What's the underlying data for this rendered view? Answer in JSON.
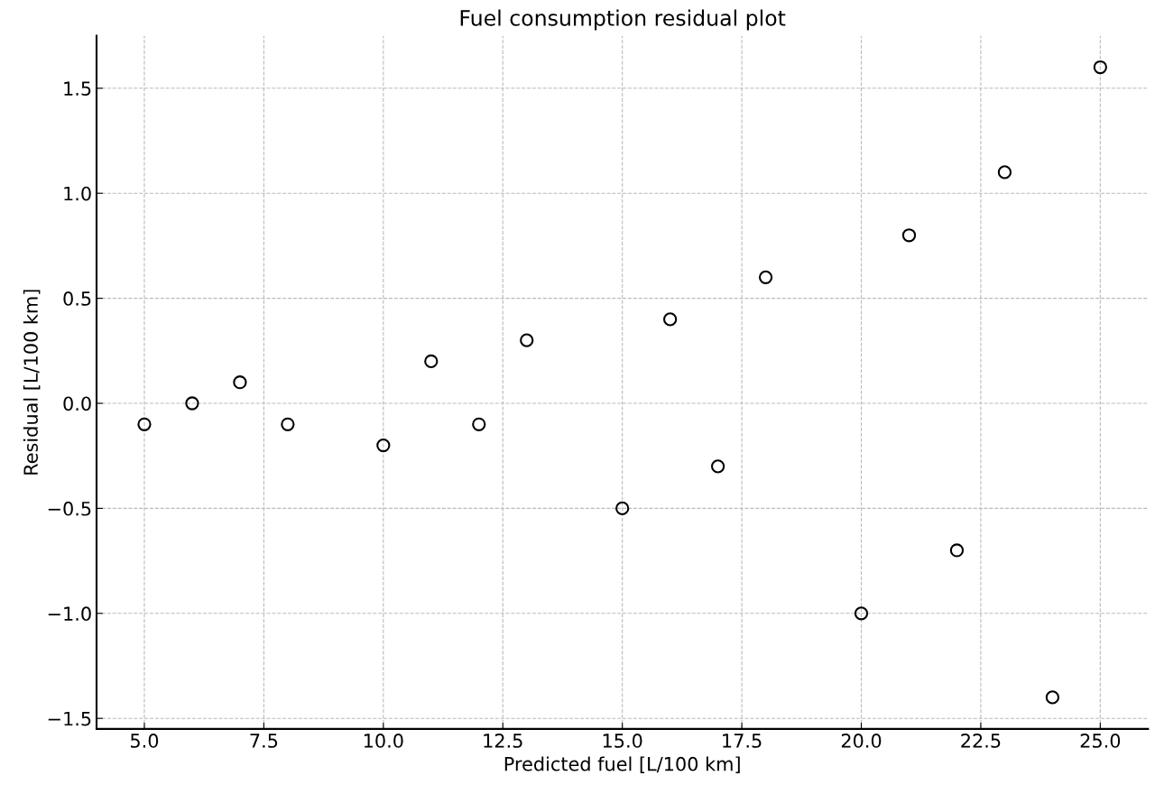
{
  "chart_data": {
    "type": "scatter",
    "title": "Fuel consumption residual plot",
    "xlabel": "Predicted fuel [L/100 km]",
    "ylabel": "Residual [L/100 km]",
    "x": [
      5,
      6,
      7,
      8,
      10,
      11,
      12,
      13,
      15,
      16,
      17,
      18,
      20,
      21,
      22,
      23,
      24,
      25
    ],
    "series": [
      {
        "color": "#000000",
        "values": [
          -0.1,
          0.0,
          0.1,
          -0.1,
          -0.2,
          0.2,
          -0.1,
          0.3,
          -0.5,
          0.4,
          -0.3,
          0.6,
          -1.0,
          0.8,
          -0.7,
          1.1,
          -1.4,
          1.6
        ]
      }
    ],
    "xlim": [
      4,
      26
    ],
    "ylim": [
      -1.55,
      1.75
    ],
    "xticks": [
      {
        "value": 5,
        "label": "5.0"
      },
      7.5,
      {
        "value": 10,
        "label": "10.0"
      },
      12.5,
      {
        "value": 15,
        "label": "15.0"
      },
      17.5,
      {
        "value": 20,
        "label": "20.0"
      },
      22.5,
      {
        "value": 25,
        "label": "25.0"
      }
    ],
    "yticks": [
      {
        "value": -1.5,
        "label": "−1.5"
      },
      {
        "value": -1,
        "label": "−1.0"
      },
      {
        "value": -0.5,
        "label": "−0.5"
      },
      {
        "value": 0,
        "label": "0.0"
      },
      0.5,
      {
        "value": 1,
        "label": "1.0"
      },
      1.5
    ],
    "grid": true,
    "marker": "circle"
  }
}
